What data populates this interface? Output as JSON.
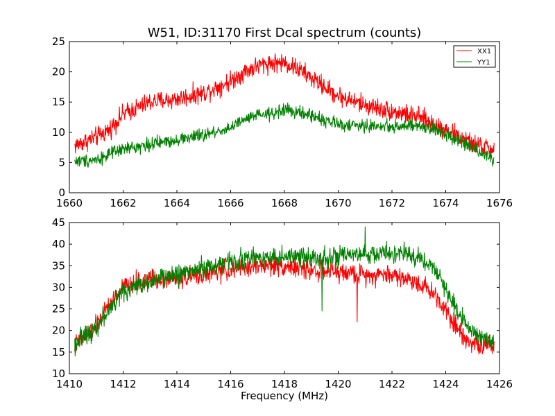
{
  "chart_data": [
    {
      "type": "line",
      "title": "W51, ID:31170 First Dcal spectrum (counts)",
      "xlabel": "",
      "ylabel": "",
      "xlim": [
        1660,
        1676
      ],
      "ylim": [
        0,
        25
      ],
      "xticks": [
        1660,
        1662,
        1664,
        1666,
        1668,
        1670,
        1672,
        1674,
        1676
      ],
      "yticks": [
        0,
        5,
        10,
        15,
        20,
        25
      ],
      "grid": false,
      "legend": {
        "placement": "top-right",
        "entries": [
          "XX1",
          "YY1"
        ]
      },
      "x_range": [
        1660.2,
        1675.8
      ],
      "series": [
        {
          "name": "XX1",
          "color": "#ff0000",
          "noise": 1.3,
          "x": [
            1660.2,
            1661,
            1661.5,
            1662,
            1663,
            1664,
            1665,
            1665.5,
            1666,
            1666.5,
            1667,
            1667.5,
            1668,
            1668.5,
            1669,
            1669.5,
            1670,
            1671,
            1672,
            1673,
            1674,
            1675,
            1675.8
          ],
          "values": [
            7.8,
            9.2,
            10.5,
            13,
            15,
            15.5,
            16.5,
            17.5,
            18.5,
            20,
            21,
            21.5,
            21.5,
            20.5,
            19,
            17.5,
            16,
            14.5,
            13.5,
            12.5,
            10.5,
            8,
            7.2
          ]
        },
        {
          "name": "YY1",
          "color": "#008000",
          "noise": 0.9,
          "x": [
            1660.2,
            1661,
            1662,
            1663,
            1664,
            1665,
            1666,
            1666.5,
            1667,
            1667.5,
            1668,
            1668.5,
            1669,
            1669.5,
            1670,
            1671,
            1672,
            1673,
            1674,
            1675,
            1675.8
          ],
          "values": [
            5.2,
            5.5,
            7.2,
            8,
            8.8,
            9.5,
            10.8,
            12,
            12.8,
            13,
            13.8,
            13.2,
            12.8,
            12,
            11.3,
            11,
            11,
            11,
            9.8,
            7.5,
            5.5
          ]
        }
      ]
    },
    {
      "type": "line",
      "title": "",
      "xlabel": "Frequency (MHz)",
      "ylabel": "",
      "xlim": [
        1410,
        1426
      ],
      "ylim": [
        10,
        45
      ],
      "xticks": [
        1410,
        1412,
        1414,
        1416,
        1418,
        1420,
        1422,
        1424,
        1426
      ],
      "yticks": [
        10,
        15,
        20,
        25,
        30,
        35,
        40,
        45
      ],
      "grid": false,
      "x_range": [
        1410.2,
        1425.8
      ],
      "series": [
        {
          "name": "XX1",
          "color": "#ff0000",
          "noise": 1.9,
          "x": [
            1410.2,
            1411,
            1411.5,
            1412,
            1413,
            1414,
            1415,
            1416,
            1417,
            1418,
            1419,
            1420,
            1421,
            1422,
            1423,
            1423.5,
            1424,
            1424.5,
            1425,
            1425.8
          ],
          "values": [
            16.5,
            21,
            26,
            30,
            32,
            32,
            33,
            34,
            35,
            35,
            34,
            33.5,
            33,
            33,
            31,
            29,
            25,
            20,
            17,
            16
          ]
        },
        {
          "name": "YY1",
          "color": "#008000",
          "noise": 1.9,
          "x": [
            1410.2,
            1411,
            1411.5,
            1412,
            1413,
            1414,
            1415,
            1416,
            1417,
            1418,
            1419,
            1420,
            1421,
            1422,
            1423,
            1423.5,
            1424,
            1424.5,
            1425,
            1425.8
          ],
          "values": [
            17,
            21,
            25,
            29,
            31.5,
            33,
            34.5,
            36,
            37,
            37,
            37,
            37,
            37.5,
            38,
            37,
            35,
            29.5,
            24,
            20,
            17
          ]
        }
      ],
      "annotations_note_values": [
        {
          "series": "XX1",
          "x": 1420.7,
          "y": 22
        },
        {
          "series": "YY1",
          "x": 1419.4,
          "y": 24.5
        },
        {
          "series": "YY1",
          "x": 1421.0,
          "y": 44
        }
      ]
    }
  ]
}
